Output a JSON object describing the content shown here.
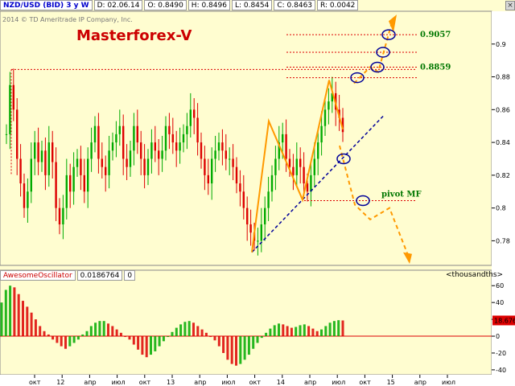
{
  "header": {
    "symbol": "NZD/USD (BID) 3 y W",
    "date": "D: 02.06.14",
    "open": "O: 0.8490",
    "high": "H: 0.8496",
    "low": "L: 0.8454",
    "close": "C: 0.8463",
    "range": "R: 0.0042",
    "copyright": "2014 © TD Ameritrade IP Company, Inc.",
    "brand": "Masterforex-V",
    "close_icon": "close-icon"
  },
  "oscillator": {
    "name": "AwesomeOscillator",
    "value": "0.0186764",
    "count": "0",
    "units": "<thousandths>",
    "current_label": "18.676"
  },
  "colors": {
    "background": "#fffdd0",
    "bull": "#00aa00",
    "bear": "#dd0000",
    "pattern": "#ff9900",
    "trendline": "#000099",
    "level": "#dd0000",
    "circle": "#000099"
  },
  "chart_data": [
    {
      "type": "candlestick",
      "series_name": "NZD/USD weekly",
      "y_ticks": [
        "0.9",
        "0.88",
        "0.86",
        "0.84",
        "0.82",
        "0.8",
        "0.78"
      ],
      "ylim": [
        0.765,
        0.92
      ],
      "x_ticks": [
        "окт",
        "12",
        "апр",
        "июл",
        "окт",
        "13",
        "апр",
        "июл",
        "окт",
        "14",
        "апр",
        "июл",
        "окт",
        "15",
        "апр",
        "июл"
      ],
      "price_path": [
        [
          0,
          0.845
        ],
        [
          1,
          0.875
        ],
        [
          2,
          0.86
        ],
        [
          3,
          0.83
        ],
        [
          4,
          0.815
        ],
        [
          5,
          0.8
        ],
        [
          6,
          0.81
        ],
        [
          7,
          0.83
        ],
        [
          8,
          0.84
        ],
        [
          9,
          0.828
        ],
        [
          10,
          0.835
        ],
        [
          11,
          0.82
        ],
        [
          12,
          0.84
        ],
        [
          13,
          0.828
        ],
        [
          14,
          0.8
        ],
        [
          15,
          0.79
        ],
        [
          16,
          0.8
        ],
        [
          17,
          0.82
        ],
        [
          18,
          0.81
        ],
        [
          19,
          0.825
        ],
        [
          20,
          0.83
        ],
        [
          21,
          0.82
        ],
        [
          22,
          0.81
        ],
        [
          23,
          0.83
        ],
        [
          24,
          0.84
        ],
        [
          25,
          0.85
        ],
        [
          26,
          0.83
        ],
        [
          27,
          0.825
        ],
        [
          28,
          0.82
        ],
        [
          29,
          0.835
        ],
        [
          30,
          0.84
        ],
        [
          31,
          0.845
        ],
        [
          32,
          0.85
        ],
        [
          33,
          0.83
        ],
        [
          34,
          0.825
        ],
        [
          35,
          0.835
        ],
        [
          36,
          0.85
        ],
        [
          37,
          0.84
        ],
        [
          38,
          0.83
        ],
        [
          39,
          0.82
        ],
        [
          40,
          0.83
        ],
        [
          41,
          0.84
        ],
        [
          42,
          0.835
        ],
        [
          43,
          0.83
        ],
        [
          44,
          0.835
        ],
        [
          45,
          0.85
        ],
        [
          46,
          0.845
        ],
        [
          47,
          0.84
        ],
        [
          48,
          0.835
        ],
        [
          49,
          0.84
        ],
        [
          50,
          0.845
        ],
        [
          51,
          0.85
        ],
        [
          52,
          0.86
        ],
        [
          53,
          0.855
        ],
        [
          54,
          0.84
        ],
        [
          55,
          0.83
        ],
        [
          56,
          0.82
        ],
        [
          57,
          0.815
        ],
        [
          58,
          0.83
        ],
        [
          59,
          0.835
        ],
        [
          60,
          0.84
        ],
        [
          61,
          0.835
        ],
        [
          62,
          0.83
        ],
        [
          63,
          0.83
        ],
        [
          64,
          0.825
        ],
        [
          65,
          0.815
        ],
        [
          66,
          0.81
        ],
        [
          67,
          0.8
        ],
        [
          68,
          0.79
        ],
        [
          69,
          0.785
        ],
        [
          70,
          0.78
        ],
        [
          71,
          0.78
        ],
        [
          72,
          0.79
        ],
        [
          73,
          0.8
        ],
        [
          74,
          0.81
        ],
        [
          75,
          0.82
        ],
        [
          76,
          0.83
        ],
        [
          77,
          0.84
        ],
        [
          78,
          0.845
        ],
        [
          79,
          0.83
        ],
        [
          80,
          0.825
        ],
        [
          81,
          0.82
        ],
        [
          82,
          0.83
        ],
        [
          83,
          0.825
        ],
        [
          84,
          0.815
        ],
        [
          85,
          0.81
        ],
        [
          86,
          0.82
        ],
        [
          87,
          0.83
        ],
        [
          88,
          0.84
        ],
        [
          89,
          0.85
        ],
        [
          90,
          0.86
        ],
        [
          91,
          0.865
        ],
        [
          92,
          0.87
        ],
        [
          93,
          0.86
        ],
        [
          94,
          0.855
        ],
        [
          95,
          0.8463
        ]
      ],
      "levels": [
        {
          "label": "0.9057",
          "value": 0.9057
        },
        {
          "label": "",
          "value": 0.895
        },
        {
          "label": "0.8859",
          "value": 0.8859
        },
        {
          "label": "",
          "value": 0.8795
        },
        {
          "label": "pivot MF",
          "value": 0.8045
        }
      ],
      "long_level": {
        "value": 0.8845
      }
    },
    {
      "type": "bar",
      "series_name": "AwesomeOscillator",
      "y_ticks": [
        "60",
        "40",
        "20",
        "0",
        "-20",
        "-40"
      ],
      "ylim": [
        -42,
        65
      ],
      "values": [
        40,
        55,
        60,
        58,
        50,
        42,
        35,
        28,
        20,
        12,
        6,
        2,
        -4,
        -8,
        -12,
        -15,
        -12,
        -8,
        -4,
        2,
        6,
        12,
        16,
        18,
        18,
        15,
        12,
        8,
        4,
        0,
        -4,
        -10,
        -16,
        -22,
        -25,
        -22,
        -18,
        -12,
        -6,
        0,
        5,
        10,
        14,
        17,
        18,
        16,
        12,
        8,
        4,
        0,
        -5,
        -12,
        -20,
        -28,
        -33,
        -35,
        -33,
        -28,
        -22,
        -15,
        -8,
        -2,
        4,
        9,
        13,
        15,
        14,
        12,
        10,
        11,
        13,
        14,
        12,
        9,
        6,
        8,
        12,
        16,
        18,
        19,
        18.676
      ]
    }
  ]
}
